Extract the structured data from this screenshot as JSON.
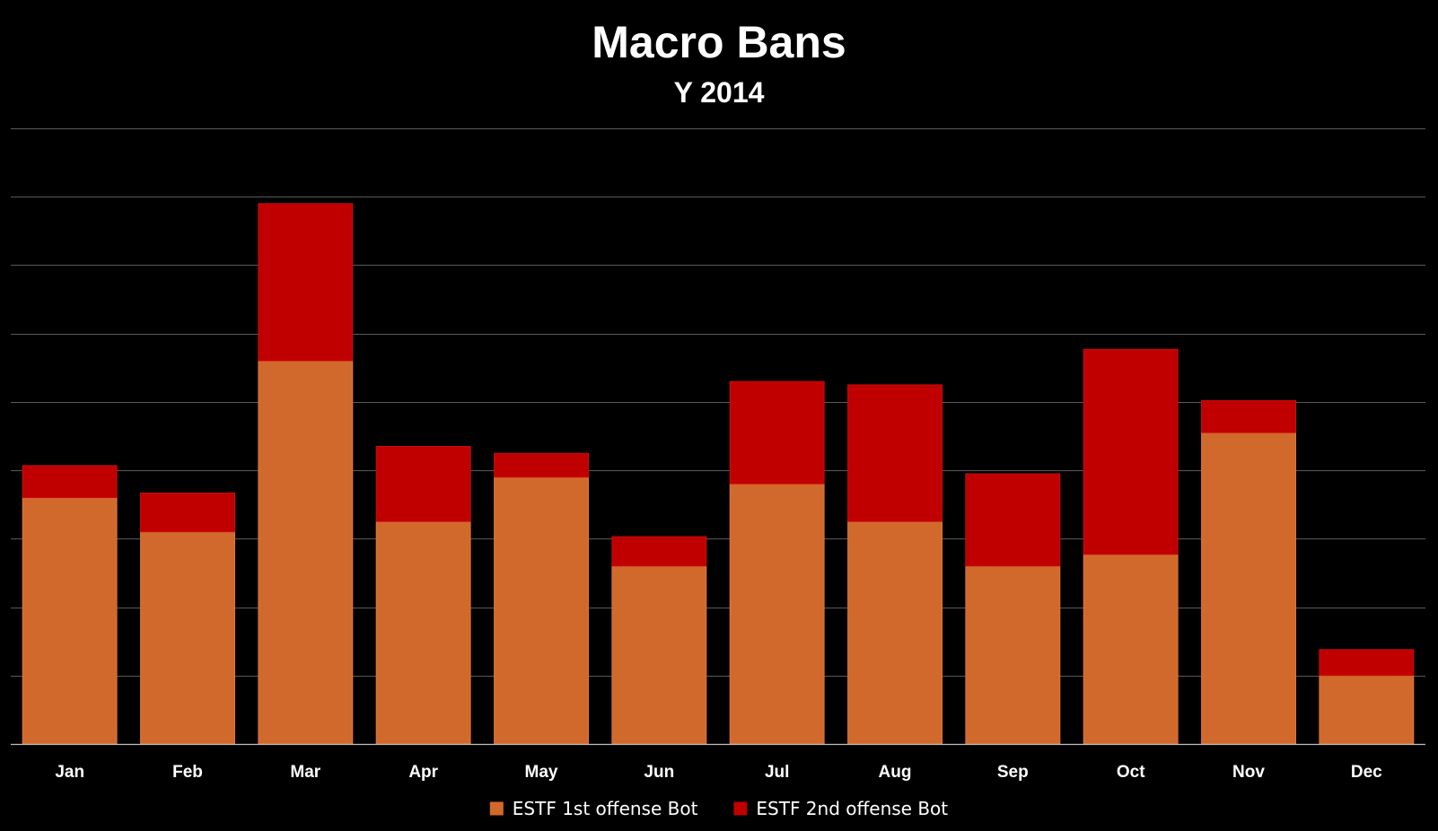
{
  "chart_data": {
    "type": "bar",
    "stacked": true,
    "title": "Macro Bans",
    "subtitle": "Y 2014",
    "xlabel": "",
    "ylabel": "",
    "categories": [
      "Jan",
      "Feb",
      "Mar",
      "Apr",
      "May",
      "Jun",
      "Jul",
      "Aug",
      "Sep",
      "Oct",
      "Nov",
      "Dec"
    ],
    "series": [
      {
        "name": "ESTF 1st offense Bot",
        "color": "#D2692C",
        "values": [
          36,
          31,
          56,
          32.5,
          39,
          26,
          38,
          32.5,
          26,
          27.7,
          45.5,
          10
        ]
      },
      {
        "name": "ESTF 2nd offense Bot",
        "color": "#C00000",
        "values": [
          4.7,
          5.7,
          23,
          11,
          3.5,
          4.3,
          15,
          20,
          13.5,
          30,
          4.7,
          3.8
        ]
      }
    ],
    "ylim": [
      0,
      90
    ],
    "ytick_step": 10,
    "y_tick_labels_visible": false,
    "grid": true,
    "legend_position": "bottom",
    "background": "#000000",
    "gridline_color": "#5a5a5a"
  }
}
